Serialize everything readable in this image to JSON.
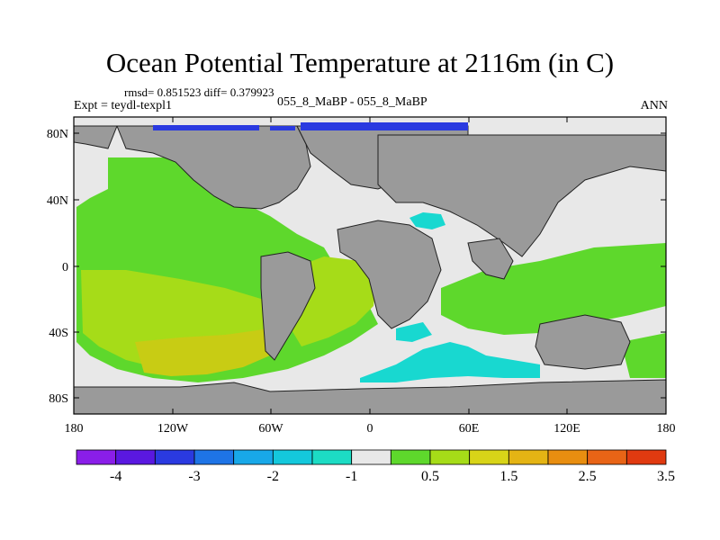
{
  "title": "Ocean Potential Temperature at 2116m (in C)",
  "stats_line": "rmsd= 0.851523 diff= 0.379923",
  "experiment": "Expt = teydl-texpl1",
  "runs": "055_8_MaBP - 055_8_MaBP",
  "season": "ANN",
  "lat_ticks": [
    "80N",
    "40N",
    "0",
    "40S",
    "80S"
  ],
  "lon_ticks": [
    "180",
    "120W",
    "60W",
    "0",
    "60E",
    "120E",
    "180"
  ],
  "colorbar": {
    "colors": [
      "#8a1ee8",
      "#5a18e0",
      "#2a3ae0",
      "#1e74e6",
      "#18a8e8",
      "#14c8dc",
      "#1cdcc4",
      "#e8e8e8",
      "#5ed82c",
      "#a6dc18",
      "#d8d418",
      "#e4b414",
      "#e88e10",
      "#e86416",
      "#e03a10"
    ],
    "labels": [
      "-4",
      "-3",
      "-2",
      "-1",
      "0.5",
      "1.5",
      "2.5",
      "3.5"
    ]
  },
  "palette": {
    "land": "#9a9a9a",
    "near_zero": "#e8e8e8",
    "warm_1": "#5ed82c",
    "warm_2": "#a6dc18",
    "warm_3": "#c8cc14",
    "cool_1": "#18d8d0",
    "cool_2": "#2a3ae0"
  }
}
